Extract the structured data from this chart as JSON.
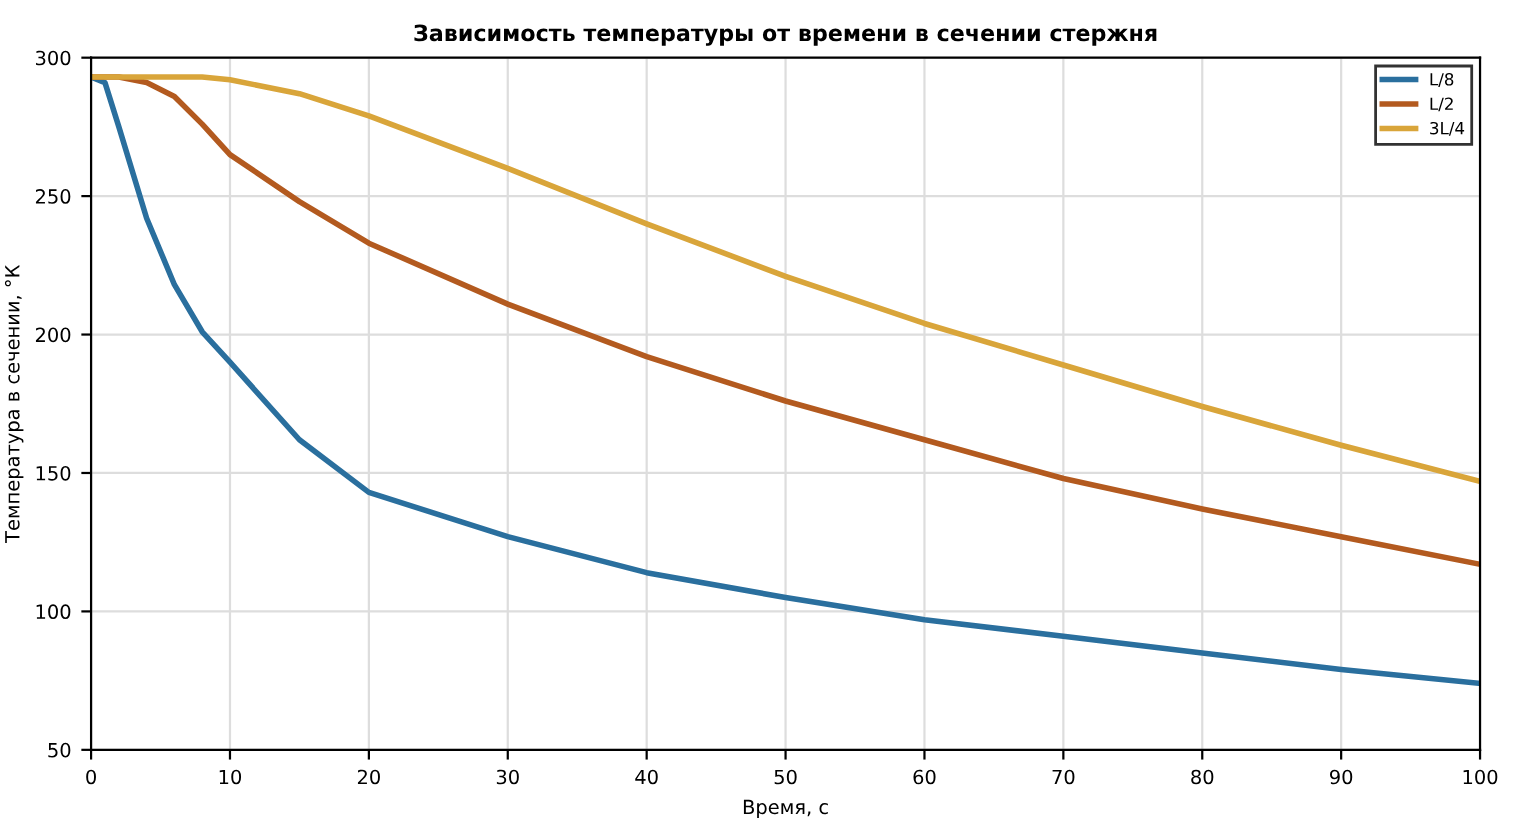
{
  "chart_data": {
    "type": "line",
    "title": "Зависимость температуры от времени в сечении стержня",
    "xlabel": "Время, с",
    "ylabel": "Температура в сечении, °К",
    "xlim": [
      0,
      100
    ],
    "ylim": [
      50,
      300
    ],
    "xticks": [
      0,
      10,
      20,
      30,
      40,
      50,
      60,
      70,
      80,
      90,
      100
    ],
    "yticks": [
      50,
      100,
      150,
      200,
      250,
      300
    ],
    "grid": true,
    "legend": "top right",
    "line_style": "solid",
    "marker": "none",
    "series": [
      {
        "name": "L/8",
        "color": "#2a6f9e",
        "x": [
          0,
          1,
          2,
          4,
          6,
          8,
          10,
          15,
          20,
          30,
          40,
          50,
          60,
          70,
          80,
          90,
          100
        ],
        "values": [
          293,
          291,
          275,
          242,
          218,
          201,
          190,
          162,
          143,
          127,
          114,
          105,
          97,
          91,
          85,
          79,
          74
        ]
      },
      {
        "name": "L/2",
        "color": "#b35a1f",
        "x": [
          0,
          2,
          4,
          6,
          8,
          10,
          15,
          20,
          30,
          40,
          50,
          60,
          70,
          80,
          90,
          100
        ],
        "values": [
          293,
          293,
          291,
          286,
          276,
          265,
          248,
          233,
          211,
          192,
          176,
          162,
          148,
          137,
          127,
          117
        ]
      },
      {
        "name": "3L/4",
        "color": "#d9a53a",
        "x": [
          0,
          5,
          8,
          10,
          15,
          20,
          30,
          40,
          50,
          60,
          70,
          80,
          90,
          100
        ],
        "values": [
          293,
          293,
          293,
          292,
          287,
          279,
          260,
          240,
          221,
          204,
          189,
          174,
          160,
          147
        ]
      }
    ]
  }
}
